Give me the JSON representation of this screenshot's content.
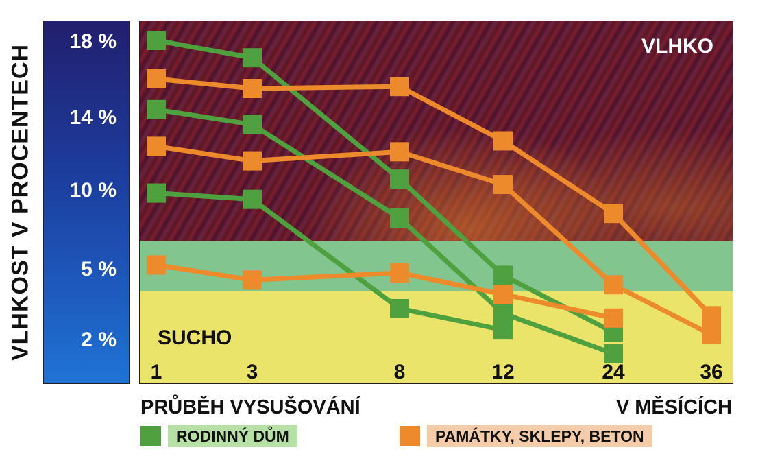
{
  "chart_data": {
    "type": "line",
    "title": "",
    "ylabel": "VLHKOST V PROCENTECH",
    "xlabel_left": "PRŮBĚH VYSUŠOVÁNÍ",
    "xlabel_right": "V MĚSÍCÍCH",
    "y_ticks": [
      "18 %",
      "14 %",
      "10 %",
      "5 %",
      "2 %"
    ],
    "y_tick_values": [
      18,
      14,
      10,
      5,
      2
    ],
    "x_categories": [
      "1",
      "3",
      "8",
      "12",
      "24",
      "36"
    ],
    "zones": [
      {
        "label": "VLHKO",
        "color": "#5a1424",
        "text_color": "#ffffff"
      },
      {
        "label": "",
        "color": "#82c58e"
      },
      {
        "label": "SUCHO",
        "color": "#eae56a",
        "text_color": "#111111"
      }
    ],
    "legend": [
      {
        "label": "RODINNÝ DŮM",
        "color": "#4fa13f",
        "bg": "#b6e0a6"
      },
      {
        "label": "PAMÁTKY, SKLEPY, BETON",
        "color": "#ec8a2c",
        "bg": "#f4ccaa"
      }
    ],
    "series": [
      {
        "group": "RODINNÝ DŮM",
        "color": "#4fa13f",
        "points": [
          [
            0,
            18.0
          ],
          [
            1,
            17.1
          ],
          [
            2,
            10.6
          ],
          [
            3,
            4.7
          ],
          [
            4,
            2.3
          ]
        ]
      },
      {
        "group": "RODINNÝ DŮM",
        "color": "#4fa13f",
        "points": [
          [
            0,
            14.4
          ],
          [
            1,
            13.6
          ],
          [
            2,
            8.2
          ],
          [
            3,
            3.1
          ],
          [
            4,
            1.4
          ]
        ]
      },
      {
        "group": "RODINNÝ DŮM",
        "color": "#4fa13f",
        "points": [
          [
            0,
            9.8
          ],
          [
            1,
            9.4
          ],
          [
            2,
            3.3
          ],
          [
            3,
            2.4
          ]
        ]
      },
      {
        "group": "PAMÁTKY, SKLEPY, BETON",
        "color": "#ec8a2c",
        "points": [
          [
            0,
            16.0
          ],
          [
            1,
            15.5
          ],
          [
            2,
            15.6
          ],
          [
            3,
            12.7
          ],
          [
            4,
            8.5
          ],
          [
            5,
            3.0
          ]
        ]
      },
      {
        "group": "PAMÁTKY, SKLEPY, BETON",
        "color": "#ec8a2c",
        "points": [
          [
            0,
            12.4
          ],
          [
            1,
            11.6
          ],
          [
            2,
            12.1
          ],
          [
            3,
            10.3
          ],
          [
            4,
            4.3
          ],
          [
            5,
            2.2
          ]
        ]
      },
      {
        "group": "PAMÁTKY, SKLEPY, BETON",
        "color": "#ec8a2c",
        "points": [
          [
            0,
            5.2
          ],
          [
            1,
            4.5
          ],
          [
            2,
            4.8
          ],
          [
            3,
            3.9
          ],
          [
            4,
            2.9
          ]
        ]
      }
    ]
  }
}
